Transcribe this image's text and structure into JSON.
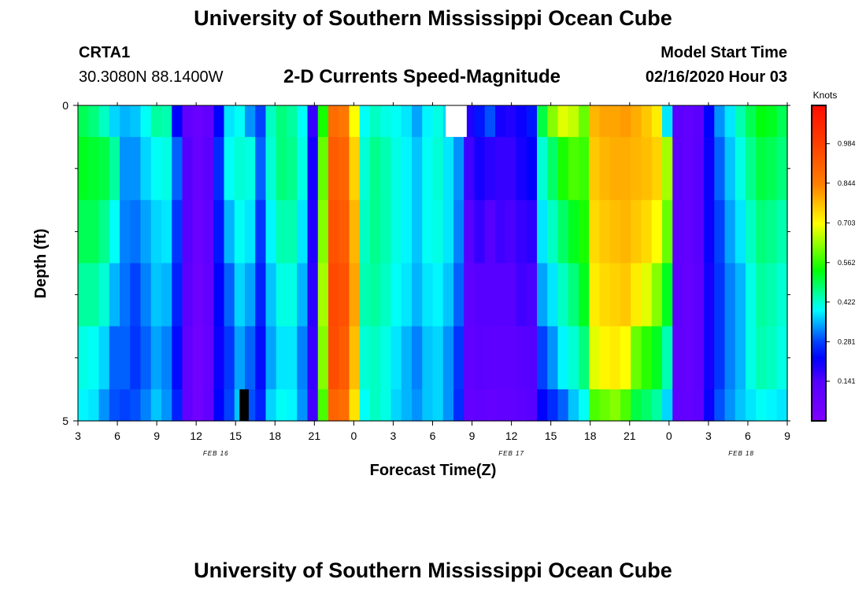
{
  "header": {
    "title": "University of Southern Mississippi Ocean Cube",
    "station": "CRTA1",
    "coords": "30.3080N 88.1400W",
    "plot_title": "2-D Currents Speed-Magnitude",
    "model_label": "Model Start Time",
    "model_time": "02/16/2020 Hour 03"
  },
  "footer": {
    "title": "University of Southern Mississippi Ocean Cube"
  },
  "chart_data": {
    "type": "heatmap",
    "title": "2-D Currents Speed-Magnitude",
    "xlabel": "Forecast Time(Z)",
    "ylabel": "Depth (ft)",
    "units": "Knots",
    "x_range_hours": [
      0,
      54
    ],
    "y_range_ft": [
      0,
      5
    ],
    "x_ticks": [
      {
        "h": 0,
        "label": "3"
      },
      {
        "h": 3,
        "label": "6"
      },
      {
        "h": 6,
        "label": "9"
      },
      {
        "h": 9,
        "label": "12"
      },
      {
        "h": 12,
        "label": "15"
      },
      {
        "h": 15,
        "label": "18"
      },
      {
        "h": 18,
        "label": "21"
      },
      {
        "h": 21,
        "label": "0"
      },
      {
        "h": 24,
        "label": "3"
      },
      {
        "h": 27,
        "label": "6"
      },
      {
        "h": 30,
        "label": "9"
      },
      {
        "h": 33,
        "label": "12"
      },
      {
        "h": 36,
        "label": "15"
      },
      {
        "h": 39,
        "label": "18"
      },
      {
        "h": 42,
        "label": "21"
      },
      {
        "h": 45,
        "label": "0"
      },
      {
        "h": 48,
        "label": "3"
      },
      {
        "h": 51,
        "label": "6"
      },
      {
        "h": 54,
        "label": "9"
      }
    ],
    "date_labels": [
      {
        "h": 10.5,
        "label": "FEB 16"
      },
      {
        "h": 33,
        "label": "FEB 17"
      },
      {
        "h": 50.5,
        "label": "FEB 18"
      }
    ],
    "y_ticks": [
      {
        "v": 0,
        "label": "0"
      },
      {
        "v": 5,
        "label": "5"
      }
    ],
    "y_minor_ticks": [
      1,
      2,
      3,
      4
    ],
    "colorbar": {
      "label": "Knots",
      "min": 0.0,
      "max": 1.12,
      "ticks": [
        0.141,
        0.281,
        0.422,
        0.562,
        0.703,
        0.844,
        0.984
      ],
      "tick_labels": [
        "0.141",
        "0.281",
        "0.422",
        "0.562",
        "0.703",
        "0.844",
        "0.984"
      ]
    },
    "depth_layers_ft": [
      0,
      0.5,
      1.5,
      2.5,
      3.5,
      4.5,
      5
    ],
    "columns": [
      [
        0.49,
        0.52,
        0.49,
        0.45,
        0.41,
        0.39
      ],
      [
        0.47,
        0.51,
        0.49,
        0.45,
        0.4,
        0.38
      ],
      [
        0.43,
        0.5,
        0.46,
        0.42,
        0.37,
        0.33
      ],
      [
        0.37,
        0.45,
        0.4,
        0.35,
        0.3,
        0.29
      ],
      [
        0.35,
        0.33,
        0.32,
        0.31,
        0.3,
        0.28
      ],
      [
        0.36,
        0.33,
        0.31,
        0.28,
        0.27,
        0.29
      ],
      [
        0.4,
        0.37,
        0.34,
        0.32,
        0.3,
        0.32
      ],
      [
        0.45,
        0.4,
        0.37,
        0.36,
        0.34,
        0.36
      ],
      [
        0.44,
        0.41,
        0.38,
        0.35,
        0.32,
        0.33
      ],
      [
        0.22,
        0.3,
        0.27,
        0.25,
        0.23,
        0.25
      ],
      [
        0.1,
        0.14,
        0.13,
        0.12,
        0.1,
        0.1
      ],
      [
        0.07,
        0.08,
        0.07,
        0.06,
        0.05,
        0.05
      ],
      [
        0.1,
        0.12,
        0.11,
        0.1,
        0.09,
        0.1
      ],
      [
        0.22,
        0.26,
        0.24,
        0.22,
        0.21,
        0.22
      ],
      [
        0.38,
        0.4,
        0.35,
        0.3,
        0.27,
        0.28
      ],
      [
        0.4,
        0.42,
        0.4,
        0.37,
        0.34,
        0.36
      ],
      [
        0.33,
        0.41,
        0.38,
        0.34,
        0.3,
        0.29
      ],
      [
        0.28,
        0.3,
        0.27,
        0.25,
        0.23,
        0.25
      ],
      [
        0.43,
        0.42,
        0.39,
        0.36,
        0.34,
        0.37
      ],
      [
        0.47,
        0.47,
        0.44,
        0.41,
        0.38,
        0.4
      ],
      [
        0.45,
        0.46,
        0.44,
        0.41,
        0.38,
        0.39
      ],
      [
        0.4,
        0.41,
        0.38,
        0.35,
        0.32,
        0.33
      ],
      [
        0.17,
        0.2,
        0.19,
        0.18,
        0.17,
        0.16
      ],
      [
        0.55,
        0.6,
        0.62,
        0.64,
        0.62,
        0.58
      ],
      [
        0.88,
        0.92,
        0.94,
        0.96,
        0.95,
        0.9
      ],
      [
        0.86,
        0.9,
        0.92,
        0.94,
        0.92,
        0.88
      ],
      [
        0.7,
        0.75,
        0.78,
        0.8,
        0.77,
        0.73
      ],
      [
        0.4,
        0.42,
        0.43,
        0.44,
        0.42,
        0.4
      ],
      [
        0.43,
        0.46,
        0.46,
        0.45,
        0.43,
        0.43
      ],
      [
        0.41,
        0.44,
        0.44,
        0.43,
        0.41,
        0.41
      ],
      [
        0.4,
        0.41,
        0.41,
        0.4,
        0.38,
        0.37
      ],
      [
        0.38,
        0.39,
        0.39,
        0.38,
        0.35,
        0.35
      ],
      [
        0.34,
        0.36,
        0.36,
        0.35,
        0.32,
        0.33
      ],
      [
        0.39,
        0.4,
        0.4,
        0.38,
        0.36,
        0.36
      ],
      [
        0.41,
        0.42,
        0.41,
        0.39,
        0.37,
        0.37
      ],
      [
        0.37,
        0.38,
        0.38,
        0.36,
        0.33,
        0.33
      ],
      [
        0.3,
        0.33,
        0.32,
        0.3,
        0.27,
        0.26
      ],
      [
        0.19,
        0.16,
        0.13,
        0.11,
        0.1,
        0.09
      ],
      [
        0.24,
        0.2,
        0.17,
        0.13,
        0.12,
        0.1
      ],
      [
        0.29,
        0.18,
        0.14,
        0.13,
        0.11,
        0.09
      ],
      [
        0.2,
        0.17,
        0.16,
        0.13,
        0.11,
        0.1
      ],
      [
        0.19,
        0.17,
        0.15,
        0.13,
        0.11,
        0.1
      ],
      [
        0.21,
        0.2,
        0.17,
        0.16,
        0.13,
        0.11
      ],
      [
        0.24,
        0.22,
        0.18,
        0.15,
        0.14,
        0.13
      ],
      [
        0.5,
        0.42,
        0.38,
        0.34,
        0.28,
        0.22
      ],
      [
        0.62,
        0.48,
        0.43,
        0.38,
        0.33,
        0.26
      ],
      [
        0.68,
        0.55,
        0.48,
        0.43,
        0.39,
        0.3
      ],
      [
        0.66,
        0.58,
        0.52,
        0.47,
        0.42,
        0.36
      ],
      [
        0.6,
        0.57,
        0.55,
        0.52,
        0.47,
        0.4
      ],
      [
        0.78,
        0.76,
        0.74,
        0.72,
        0.68,
        0.58
      ],
      [
        0.8,
        0.78,
        0.76,
        0.74,
        0.71,
        0.6
      ],
      [
        0.8,
        0.79,
        0.77,
        0.75,
        0.72,
        0.62
      ],
      [
        0.81,
        0.79,
        0.78,
        0.76,
        0.7,
        0.58
      ],
      [
        0.79,
        0.78,
        0.76,
        0.72,
        0.6,
        0.5
      ],
      [
        0.76,
        0.77,
        0.74,
        0.68,
        0.56,
        0.48
      ],
      [
        0.72,
        0.75,
        0.7,
        0.62,
        0.52,
        0.45
      ],
      [
        0.38,
        0.64,
        0.6,
        0.52,
        0.44,
        0.37
      ],
      [
        0.12,
        0.12,
        0.11,
        0.11,
        0.1,
        0.1
      ],
      [
        0.1,
        0.1,
        0.1,
        0.09,
        0.09,
        0.09
      ],
      [
        0.12,
        0.13,
        0.13,
        0.12,
        0.12,
        0.11
      ],
      [
        0.22,
        0.21,
        0.21,
        0.2,
        0.2,
        0.21
      ],
      [
        0.33,
        0.3,
        0.28,
        0.27,
        0.27,
        0.29
      ],
      [
        0.38,
        0.36,
        0.34,
        0.32,
        0.32,
        0.33
      ],
      [
        0.44,
        0.41,
        0.38,
        0.35,
        0.35,
        0.36
      ],
      [
        0.49,
        0.46,
        0.43,
        0.41,
        0.41,
        0.38
      ],
      [
        0.53,
        0.5,
        0.47,
        0.45,
        0.44,
        0.4
      ],
      [
        0.52,
        0.49,
        0.46,
        0.44,
        0.43,
        0.39
      ],
      [
        0.49,
        0.47,
        0.44,
        0.42,
        0.41,
        0.38
      ]
    ],
    "invalid_cells": [
      {
        "from_h": 12.3,
        "to_h": 13.0,
        "top_ft": 4.5,
        "bottom_ft": 5,
        "label": "bottom"
      },
      {
        "from_h": 28.0,
        "to_h": 29.6,
        "top_ft": 0,
        "bottom_ft": 0.5,
        "label": "surface"
      }
    ]
  }
}
